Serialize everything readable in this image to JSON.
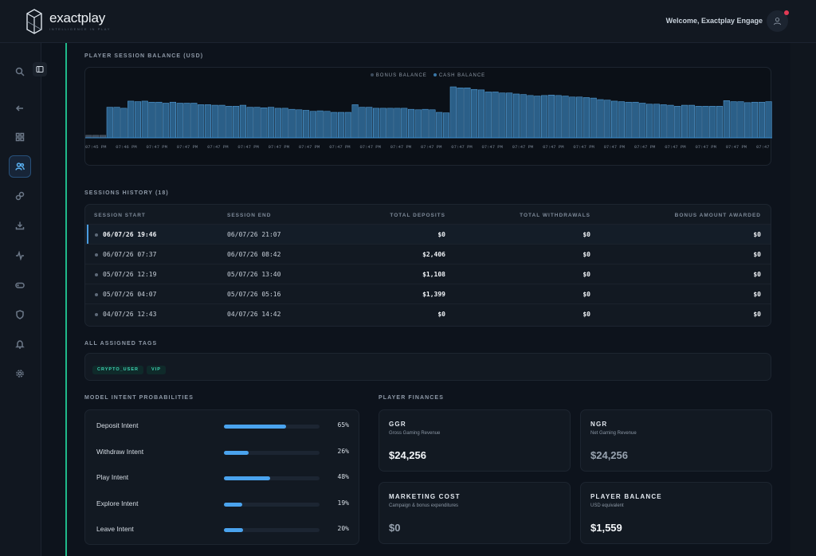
{
  "app": {
    "name": "exactplay",
    "tagline": "INTELLIGENCE IN PLAY",
    "welcome": "Welcome, Exactplay Engage"
  },
  "sidebar": {
    "items": [
      {
        "icon": "search-icon"
      },
      {
        "icon": "back-arrow-icon"
      },
      {
        "icon": "grid-icon"
      },
      {
        "icon": "users-icon",
        "active": true
      },
      {
        "icon": "link-icon"
      },
      {
        "icon": "download-icon"
      },
      {
        "icon": "activity-icon"
      },
      {
        "icon": "gamepad-icon"
      },
      {
        "icon": "shield-icon"
      },
      {
        "icon": "bell-icon"
      },
      {
        "icon": "settings-icon"
      }
    ]
  },
  "balance_section": {
    "title": "PLAYER SESSION BALANCE (USD)"
  },
  "chart_data": {
    "type": "bar",
    "series": [
      {
        "name": "BONUS BALANCE",
        "color": "#3d4b5c"
      },
      {
        "name": "CASH BALANCE",
        "color": "#3a78a8"
      }
    ],
    "x_tick_labels": [
      "07:45 PM",
      "07:46 PM",
      "07:47 PM",
      "07:47 PM",
      "07:47 PM",
      "07:47 PM",
      "07:47 PM",
      "07:47 PM",
      "07:47 PM",
      "07:47 PM",
      "07:47 PM",
      "07:47 PM",
      "07:47 PM",
      "07:47 PM",
      "07:47 PM",
      "07:47 PM",
      "07:47 PM",
      "07:47 PM",
      "07:47 PM",
      "07:47 PM",
      "07:47 PM",
      "07:47 PM",
      "07:47 PM"
    ],
    "values": [
      0.05,
      0.05,
      0.05,
      0.6,
      0.6,
      0.58,
      0.72,
      0.71,
      0.72,
      0.7,
      0.7,
      0.68,
      0.7,
      0.68,
      0.68,
      0.68,
      0.65,
      0.65,
      0.64,
      0.64,
      0.62,
      0.62,
      0.64,
      0.6,
      0.6,
      0.59,
      0.6,
      0.58,
      0.58,
      0.56,
      0.55,
      0.54,
      0.52,
      0.53,
      0.52,
      0.5,
      0.5,
      0.5,
      0.65,
      0.6,
      0.6,
      0.58,
      0.58,
      0.58,
      0.58,
      0.58,
      0.56,
      0.55,
      0.56,
      0.55,
      0.5,
      0.49,
      1.0,
      0.98,
      0.98,
      0.95,
      0.94,
      0.9,
      0.9,
      0.88,
      0.88,
      0.86,
      0.85,
      0.83,
      0.82,
      0.83,
      0.84,
      0.83,
      0.82,
      0.8,
      0.8,
      0.79,
      0.78,
      0.75,
      0.74,
      0.72,
      0.71,
      0.7,
      0.7,
      0.68,
      0.66,
      0.66,
      0.65,
      0.64,
      0.62,
      0.64,
      0.64,
      0.62,
      0.62,
      0.62,
      0.62,
      0.73,
      0.71,
      0.71,
      0.69,
      0.7,
      0.7,
      0.71
    ],
    "grid": false,
    "legend": "top-center"
  },
  "sessions": {
    "title": "SESSIONS HISTORY (18)",
    "headers": [
      "SESSION START",
      "SESSION END",
      "TOTAL DEPOSITS",
      "TOTAL WITHDRAWALS",
      "BONUS AMOUNT AWARDED"
    ],
    "rows": [
      {
        "start": "06/07/26 19:46",
        "end": "06/07/26 21:07",
        "deposits": "$0",
        "withdrawals": "$0",
        "bonus": "$0",
        "selected": true
      },
      {
        "start": "06/07/26 07:37",
        "end": "06/07/26 08:42",
        "deposits": "$2,406",
        "withdrawals": "$0",
        "bonus": "$0"
      },
      {
        "start": "05/07/26 12:19",
        "end": "05/07/26 13:40",
        "deposits": "$1,108",
        "withdrawals": "$0",
        "bonus": "$0"
      },
      {
        "start": "05/07/26 04:07",
        "end": "05/07/26 05:16",
        "deposits": "$1,399",
        "withdrawals": "$0",
        "bonus": "$0"
      },
      {
        "start": "04/07/26 12:43",
        "end": "04/07/26 14:42",
        "deposits": "$0",
        "withdrawals": "$0",
        "bonus": "$0"
      }
    ]
  },
  "tags": {
    "title": "ALL ASSIGNED TAGS",
    "items": [
      "CRYPTO_USER",
      "VIP"
    ]
  },
  "intent": {
    "title": "MODEL INTENT PROBABILITIES",
    "items": [
      {
        "label": "Deposit Intent",
        "value": 65,
        "pct": "65%"
      },
      {
        "label": "Withdraw Intent",
        "value": 26,
        "pct": "26%"
      },
      {
        "label": "Play Intent",
        "value": 48,
        "pct": "48%"
      },
      {
        "label": "Explore Intent",
        "value": 19,
        "pct": "19%"
      },
      {
        "label": "Leave Intent",
        "value": 20,
        "pct": "20%"
      }
    ]
  },
  "finances": {
    "title": "PLAYER FINANCES",
    "cards": [
      {
        "title": "GGR",
        "sub": "Gross Gaming Revenue",
        "value": "$24,256"
      },
      {
        "title": "NGR",
        "sub": "Net Gaming Revenue",
        "value": "$24,256"
      },
      {
        "title": "MARKETING COST",
        "sub": "Campaign & bonus expenditures",
        "value": "$0"
      },
      {
        "title": "PLAYER BALANCE",
        "sub": "USD equivalent",
        "value": "$1,559"
      }
    ]
  }
}
